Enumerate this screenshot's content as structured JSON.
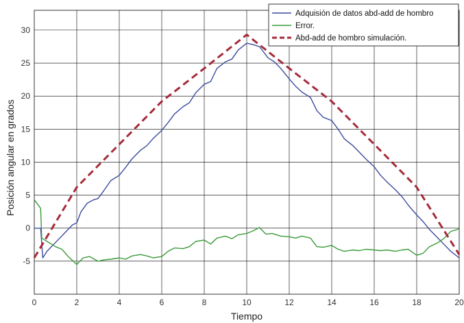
{
  "chart_data": {
    "type": "line",
    "title": "",
    "xlabel": "Tiempo",
    "ylabel": "Posición angular en grados",
    "xlim": [
      0,
      20
    ],
    "ylim": [
      -10,
      33
    ],
    "x_ticks": [
      "0",
      "2",
      "4",
      "6",
      "8",
      "10",
      "12",
      "14",
      "16",
      "18",
      "20"
    ],
    "y_ticks": [
      "-5",
      "0",
      "5",
      "10",
      "15",
      "20",
      "25",
      "30"
    ],
    "grid": true,
    "legend_position": "top-right",
    "series": [
      {
        "name": "Adquisión de datos abd-add de hombro",
        "color": "#3b4a9c",
        "style": "solid",
        "x": [
          0,
          0.3,
          0.4,
          0.6,
          0.9,
          1.2,
          1.5,
          1.8,
          2.0,
          2.2,
          2.5,
          2.8,
          3.0,
          3.3,
          3.6,
          4.0,
          4.3,
          4.6,
          5.0,
          5.3,
          5.6,
          6.0,
          6.3,
          6.6,
          7.0,
          7.3,
          7.6,
          8.0,
          8.3,
          8.6,
          9.0,
          9.3,
          9.6,
          10.0,
          10.3,
          10.6,
          11.0,
          11.3,
          11.6,
          12.0,
          12.3,
          12.6,
          13.0,
          13.3,
          13.6,
          14.0,
          14.3,
          14.6,
          15.0,
          15.3,
          15.6,
          16.0,
          16.3,
          16.6,
          17.0,
          17.3,
          17.6,
          18.0,
          18.3,
          18.6,
          19.0,
          19.3,
          19.6,
          20.0
        ],
        "y": [
          0,
          0,
          -4.5,
          -3.5,
          -2.5,
          -1.5,
          -0.5,
          0.5,
          0.8,
          2.5,
          3.8,
          4.3,
          4.5,
          5.8,
          7.2,
          8.0,
          9.2,
          10.5,
          11.8,
          12.5,
          13.6,
          14.8,
          16.0,
          17.3,
          18.4,
          19.0,
          20.5,
          21.8,
          22.2,
          24.2,
          25.2,
          25.6,
          27.0,
          28.0,
          27.8,
          27.5,
          25.8,
          25.2,
          24.2,
          22.6,
          21.5,
          20.6,
          19.8,
          17.8,
          16.8,
          16.3,
          15.0,
          13.5,
          12.5,
          11.5,
          10.5,
          9.3,
          8.0,
          7.0,
          5.8,
          4.8,
          3.5,
          2.0,
          1.0,
          -0.2,
          -1.5,
          -2.5,
          -3.5,
          -4.5
        ]
      },
      {
        "name": "Error.",
        "color": "#3a9a3a",
        "style": "solid",
        "x": [
          0,
          0.3,
          0.35,
          0.6,
          1.0,
          1.3,
          1.6,
          2.0,
          2.3,
          2.6,
          3.0,
          3.3,
          3.6,
          4.0,
          4.3,
          4.6,
          5.0,
          5.3,
          5.6,
          6.0,
          6.3,
          6.6,
          7.0,
          7.3,
          7.6,
          8.0,
          8.3,
          8.6,
          9.0,
          9.3,
          9.6,
          10.0,
          10.3,
          10.6,
          10.9,
          11.2,
          11.6,
          12.0,
          12.3,
          12.6,
          13.0,
          13.3,
          13.6,
          14.0,
          14.3,
          14.6,
          15.0,
          15.3,
          15.6,
          16.0,
          16.3,
          16.6,
          17.0,
          17.3,
          17.6,
          18.0,
          18.3,
          18.6,
          19.0,
          19.3,
          19.6,
          20.0
        ],
        "y": [
          4.3,
          3.0,
          -1.5,
          -2.0,
          -2.8,
          -3.2,
          -4.3,
          -5.5,
          -4.5,
          -4.3,
          -5.0,
          -4.8,
          -4.7,
          -4.5,
          -4.7,
          -4.2,
          -4.0,
          -4.2,
          -4.5,
          -4.3,
          -3.5,
          -3.0,
          -3.1,
          -2.8,
          -2.0,
          -1.8,
          -2.4,
          -1.5,
          -1.2,
          -1.6,
          -1.0,
          -0.8,
          -0.4,
          0.1,
          -0.9,
          -0.8,
          -1.2,
          -1.3,
          -1.5,
          -1.2,
          -1.5,
          -2.8,
          -2.9,
          -2.6,
          -3.2,
          -3.5,
          -3.3,
          -3.4,
          -3.2,
          -3.3,
          -3.4,
          -3.3,
          -3.5,
          -3.3,
          -3.2,
          -4.1,
          -3.8,
          -2.8,
          -2.2,
          -1.5,
          -0.5,
          -0.1
        ]
      },
      {
        "name": "Abd-add de hombro simulación.",
        "color": "#a52a3a",
        "style": "dashed",
        "x": [
          0,
          2,
          4,
          6,
          8,
          10,
          12,
          14,
          16,
          18,
          20
        ],
        "y": [
          -4.5,
          6.2,
          12.7,
          19.2,
          24.2,
          29.3,
          24.2,
          19.2,
          12.7,
          6.2,
          -4.0
        ]
      }
    ]
  }
}
